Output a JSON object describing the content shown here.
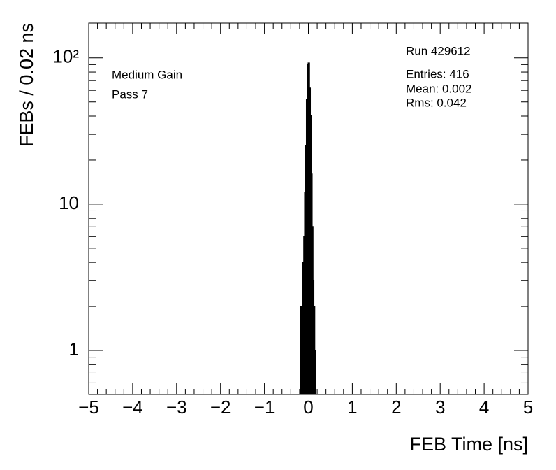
{
  "chart_data": {
    "type": "histogram",
    "xlabel": "FEB Time [ns]",
    "ylabel": "FEBs / 0.02 ns",
    "bins": [
      -0.18,
      -0.16,
      -0.14,
      -0.12,
      -0.1,
      -0.08,
      -0.06,
      -0.04,
      -0.02,
      0.0,
      0.02,
      0.04,
      0.06,
      0.08,
      0.1,
      0.12,
      0.14,
      0.16
    ],
    "values": [
      2,
      1,
      1,
      4,
      6,
      12,
      25,
      52,
      90,
      92,
      62,
      40,
      16,
      7,
      3,
      2,
      1
    ],
    "color": "#000000",
    "log_y": true,
    "xlim": [
      -5,
      5
    ],
    "ylim": [
      0.5,
      173
    ],
    "xticks": [
      {
        "value": -5,
        "label": "−5"
      },
      {
        "value": -4,
        "label": "−4"
      },
      {
        "value": -3,
        "label": "−3"
      },
      {
        "value": -2,
        "label": "−2"
      },
      {
        "value": -1,
        "label": "−1"
      },
      0,
      1,
      2,
      3,
      4,
      5
    ],
    "yticks": [
      1,
      10,
      {
        "value": 100,
        "label": "10²"
      }
    ],
    "annotations_left": [
      "Medium Gain",
      "Pass 7"
    ],
    "stats_title": "Run 429612",
    "stats": [
      "Entries: 416",
      "Mean: 0.002",
      "Rms: 0.042"
    ]
  }
}
